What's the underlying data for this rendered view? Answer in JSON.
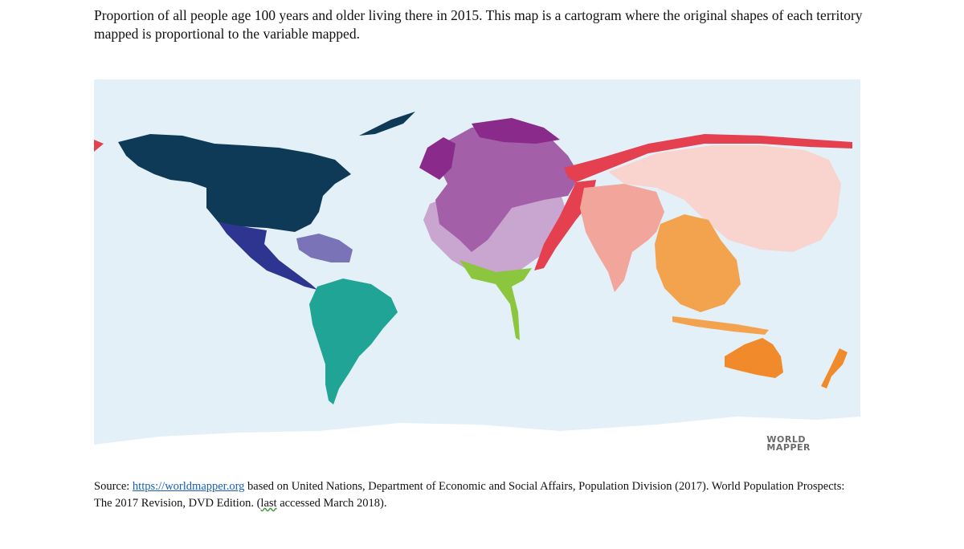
{
  "caption": "Proportion of all people age 100 years and older living there in 2015. This map is a cartogram where the original shapes of each territory mapped is proportional to the variable mapped.",
  "map": {
    "type": "cartogram",
    "logo": {
      "line1": "WORLD",
      "line2": "MAPPER"
    },
    "colors": {
      "ocean": "#e3f0f7",
      "north_america": "#0f3a57",
      "central_america": "#2e3590",
      "caribbean": "#7b73b8",
      "south_america": "#1fa495",
      "europe": "#8a2a8a",
      "europe_east": "#a35fa8",
      "africa": "#c9a6cf",
      "east_africa": "#8cc63f",
      "russia_central_asia": "#e4404f",
      "east_asia": "#f9d4cf",
      "south_asia": "#f2a59a",
      "southeast_asia": "#f3a34d",
      "oceania": "#f08a2b",
      "antarctica": "#ffffff"
    }
  },
  "source": {
    "prefix": "Source: ",
    "link": "https://worldmapper.org",
    "text": " based on United Nations, Department of Economic and Social Affairs, Population Division (2017). World Population Prospects: The 2017 Revision, DVD Edition.  (",
    "last": "last",
    "suffix": " accessed March 2018)."
  }
}
